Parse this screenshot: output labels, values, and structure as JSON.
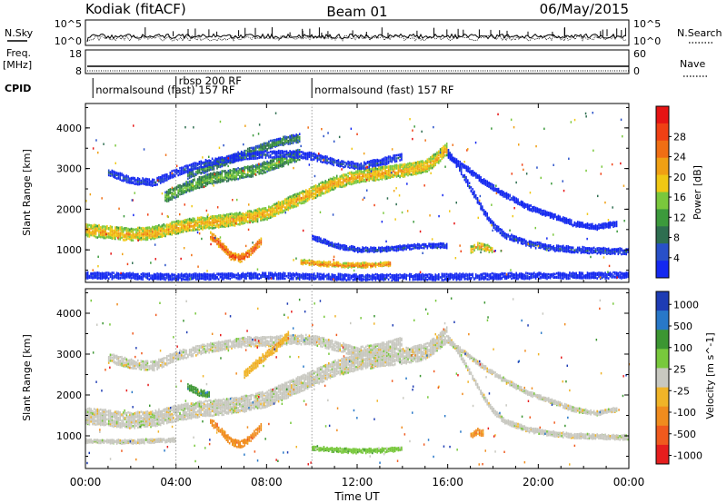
{
  "header": {
    "station": "Kodiak (fitACF)",
    "beam": "Beam 01",
    "date": "06/May/2015"
  },
  "strips": {
    "nsky_label": "N.Sky",
    "nsky_ticks": [
      "10^5",
      "10^0"
    ],
    "nsearch_label": "N.Search",
    "nsearch_ticks": [
      "10^5",
      "10^0"
    ],
    "freq_label": "Freq.",
    "freq_unit": "[MHz]",
    "freq_ticks": [
      "18",
      "8"
    ],
    "nave_label": "Nave",
    "nave_ticks": [
      "60",
      "0"
    ],
    "cpid_label": "CPID",
    "cpid_segments": [
      {
        "label": "normalsound (fast) 157 RF",
        "start": 0.33,
        "end": 10.0
      },
      {
        "label": "rbsp 200 RF",
        "start": 4.0,
        "end": 10.0
      },
      {
        "label": "normalsound (fast) 157 RF",
        "start": 10.0,
        "end": 24.0
      }
    ]
  },
  "colors": {
    "power_scale": [
      "#1428f0",
      "#2850c8",
      "#2e6e50",
      "#3c9a3c",
      "#7ac83c",
      "#f0c814",
      "#f0a014",
      "#f06e14",
      "#f04014",
      "#e61414"
    ],
    "velocity_scale": [
      "#1e3cb4",
      "#2878c8",
      "#3c9632",
      "#78c83c",
      "#c8c8c0",
      "#f0b428",
      "#f08c1e",
      "#f05a1e",
      "#e61e1e"
    ]
  },
  "chart_data": [
    {
      "type": "heatmap",
      "name": "power",
      "xlabel": "",
      "ylabel": "Slant Range [km]",
      "xlim": [
        0,
        24
      ],
      "ylim": [
        200,
        4600
      ],
      "yticks": [
        "1000",
        "2000",
        "3000",
        "4000"
      ],
      "colorbar_label": "Power [dB]",
      "colorbar_ticks": [
        "4",
        "8",
        "12",
        "16",
        "20",
        "24",
        "28"
      ],
      "bands": [
        {
          "points": [
            [
              0.0,
              1480
            ],
            [
              1.0,
              1430
            ],
            [
              2.0,
              1370
            ],
            [
              3.0,
              1420
            ],
            [
              4.0,
              1550
            ],
            [
              5.0,
              1650
            ],
            [
              6.0,
              1700
            ],
            [
              7.0,
              1780
            ],
            [
              8.0,
              1900
            ],
            [
              9.0,
              2150
            ],
            [
              10.0,
              2400
            ],
            [
              11.0,
              2650
            ],
            [
              12.0,
              2800
            ],
            [
              13.0,
              2880
            ],
            [
              14.0,
              2950
            ],
            [
              15.0,
              3050
            ],
            [
              15.5,
              3250
            ],
            [
              16.0,
              3500
            ]
          ],
          "halfwidth": 140,
          "level": 6
        },
        {
          "points": [
            [
              3.5,
              2300
            ],
            [
              4.5,
              2550
            ],
            [
              5.5,
              2750
            ],
            [
              6.5,
              2850
            ],
            [
              7.5,
              2950
            ],
            [
              8.5,
              3150
            ],
            [
              9.5,
              3350
            ]
          ],
          "halfwidth": 120,
          "level": 4
        },
        {
          "points": [
            [
              4.5,
              2850
            ],
            [
              5.5,
              3050
            ],
            [
              6.5,
              3250
            ],
            [
              7.5,
              3450
            ],
            [
              8.5,
              3650
            ],
            [
              9.5,
              3750
            ]
          ],
          "halfwidth": 90,
          "level": 3
        },
        {
          "points": [
            [
              1.0,
              2900
            ],
            [
              2.0,
              2700
            ],
            [
              3.0,
              2650
            ],
            [
              4.0,
              2900
            ],
            [
              5.0,
              3100
            ],
            [
              6.0,
              3200
            ],
            [
              7.0,
              3300
            ],
            [
              8.0,
              3350
            ],
            [
              9.0,
              3350
            ],
            [
              10.0,
              3300
            ],
            [
              11.0,
              3150
            ],
            [
              12.0,
              3050
            ],
            [
              13.0,
              3150
            ],
            [
              14.0,
              3300
            ]
          ],
          "halfwidth": 70,
          "level": 1
        },
        {
          "points": [
            [
              16.0,
              3400
            ],
            [
              16.5,
              3000
            ],
            [
              17.0,
              2500
            ],
            [
              17.5,
              2000
            ],
            [
              18.0,
              1600
            ],
            [
              18.5,
              1350
            ],
            [
              19.5,
              1150
            ],
            [
              20.5,
              1050
            ],
            [
              21.5,
              1000
            ],
            [
              22.5,
              980
            ],
            [
              23.5,
              960
            ],
            [
              24.0,
              960
            ]
          ],
          "halfwidth": 60,
          "level": 1
        },
        {
          "points": [
            [
              16.0,
              3300
            ],
            [
              16.8,
              3000
            ],
            [
              17.5,
              2700
            ],
            [
              18.5,
              2350
            ],
            [
              19.5,
              2050
            ],
            [
              20.5,
              1850
            ],
            [
              21.5,
              1650
            ],
            [
              22.5,
              1550
            ],
            [
              23.5,
              1650
            ]
          ],
          "halfwidth": 50,
          "level": 0
        },
        {
          "points": [
            [
              5.5,
              1350
            ],
            [
              6.0,
              1100
            ],
            [
              6.4,
              850
            ],
            [
              6.8,
              780
            ],
            [
              7.2,
              900
            ],
            [
              7.8,
              1250
            ]
          ],
          "halfwidth": 80,
          "level": 8
        },
        {
          "points": [
            [
              10.0,
              1300
            ],
            [
              11.0,
              1100
            ],
            [
              12.0,
              1000
            ],
            [
              13.0,
              1000
            ],
            [
              14.0,
              1050
            ],
            [
              15.0,
              1100
            ],
            [
              16.0,
              1100
            ]
          ],
          "halfwidth": 45,
          "level": 1
        },
        {
          "points": [
            [
              9.5,
              700
            ],
            [
              10.5,
              650
            ],
            [
              11.5,
              620
            ],
            [
              12.5,
              620
            ],
            [
              13.5,
              660
            ]
          ],
          "halfwidth": 45,
          "level": 7
        },
        {
          "points": [
            [
              17.0,
              1000
            ],
            [
              17.3,
              1100
            ],
            [
              17.6,
              1050
            ],
            [
              18.0,
              1000
            ]
          ],
          "halfwidth": 70,
          "level": 6
        },
        {
          "points": [
            [
              0.0,
              370
            ],
            [
              4.0,
              330
            ],
            [
              8.0,
              360
            ],
            [
              12.0,
              320
            ],
            [
              16.0,
              330
            ],
            [
              20.0,
              360
            ],
            [
              24.0,
              370
            ]
          ],
          "halfwidth": 60,
          "level": 0
        }
      ]
    },
    {
      "type": "heatmap",
      "name": "velocity",
      "xlabel": "Time UT",
      "ylabel": "Slant Range [km]",
      "xlim": [
        0,
        24
      ],
      "ylim": [
        200,
        4600
      ],
      "xticks": [
        "00:00",
        "04:00",
        "08:00",
        "12:00",
        "16:00",
        "20:00",
        "00:00"
      ],
      "yticks": [
        "1000",
        "2000",
        "3000",
        "4000"
      ],
      "colorbar_label": "Velocity [m s^-1]",
      "colorbar_ticks": [
        "1000",
        "500",
        "100",
        "25",
        "-25",
        "-100",
        "-500",
        "-1000"
      ],
      "bands": [
        {
          "points": [
            [
              0.0,
              1480
            ],
            [
              1.0,
              1430
            ],
            [
              2.0,
              1370
            ],
            [
              3.0,
              1420
            ],
            [
              4.0,
              1550
            ],
            [
              5.0,
              1650
            ],
            [
              6.0,
              1700
            ],
            [
              7.0,
              1780
            ],
            [
              8.0,
              1900
            ],
            [
              9.0,
              2150
            ],
            [
              10.0,
              2400
            ],
            [
              11.0,
              2650
            ],
            [
              12.0,
              2800
            ],
            [
              13.0,
              2880
            ],
            [
              14.0,
              2950
            ],
            [
              15.0,
              3050
            ],
            [
              15.5,
              3250
            ],
            [
              16.0,
              3500
            ]
          ],
          "halfwidth": 180,
          "level": 4
        },
        {
          "points": [
            [
              1.0,
              2900
            ],
            [
              2.0,
              2750
            ],
            [
              3.0,
              2700
            ],
            [
              4.0,
              2950
            ],
            [
              5.0,
              3100
            ],
            [
              6.0,
              3200
            ],
            [
              7.0,
              3300
            ],
            [
              8.0,
              3300
            ],
            [
              9.0,
              3350
            ],
            [
              10.0,
              3350
            ],
            [
              11.0,
              3200
            ],
            [
              12.0,
              3050
            ],
            [
              13.0,
              3150
            ],
            [
              14.0,
              3300
            ]
          ],
          "halfwidth": 100,
          "level": 4
        },
        {
          "points": [
            [
              16.0,
              3400
            ],
            [
              16.5,
              3000
            ],
            [
              17.0,
              2500
            ],
            [
              17.5,
              2000
            ],
            [
              18.0,
              1600
            ],
            [
              18.5,
              1350
            ],
            [
              19.5,
              1150
            ],
            [
              20.5,
              1050
            ],
            [
              21.5,
              1000
            ],
            [
              22.5,
              980
            ],
            [
              23.5,
              960
            ],
            [
              24.0,
              960
            ]
          ],
          "halfwidth": 45,
          "level": 4
        },
        {
          "points": [
            [
              16.0,
              3300
            ],
            [
              16.8,
              3000
            ],
            [
              17.5,
              2700
            ],
            [
              18.5,
              2350
            ],
            [
              19.5,
              2050
            ],
            [
              20.5,
              1850
            ],
            [
              21.5,
              1650
            ],
            [
              22.5,
              1550
            ],
            [
              23.5,
              1650
            ]
          ],
          "halfwidth": 40,
          "level": 4
        },
        {
          "points": [
            [
              5.5,
              1350
            ],
            [
              6.0,
              1100
            ],
            [
              6.4,
              850
            ],
            [
              6.8,
              780
            ],
            [
              7.2,
              900
            ],
            [
              7.8,
              1250
            ]
          ],
          "halfwidth": 70,
          "level": 6
        },
        {
          "points": [
            [
              7.0,
              2500
            ],
            [
              7.8,
              2900
            ],
            [
              8.5,
              3200
            ],
            [
              9.0,
              3500
            ]
          ],
          "halfwidth": 80,
          "level": 5
        },
        {
          "points": [
            [
              4.5,
              2200
            ],
            [
              5.0,
              2050
            ],
            [
              5.5,
              2000
            ]
          ],
          "halfwidth": 60,
          "level": 2
        },
        {
          "points": [
            [
              10.0,
              700
            ],
            [
              11.0,
              650
            ],
            [
              12.0,
              620
            ],
            [
              13.0,
              640
            ],
            [
              14.0,
              680
            ]
          ],
          "halfwidth": 40,
          "level": 3
        },
        {
          "points": [
            [
              17.0,
              1000
            ],
            [
              17.3,
              1100
            ],
            [
              17.6,
              1050
            ]
          ],
          "halfwidth": 60,
          "level": 6
        },
        {
          "points": [
            [
              0.0,
              870
            ],
            [
              2.0,
              850
            ],
            [
              4.0,
              900
            ]
          ],
          "halfwidth": 35,
          "level": 4
        }
      ]
    }
  ]
}
